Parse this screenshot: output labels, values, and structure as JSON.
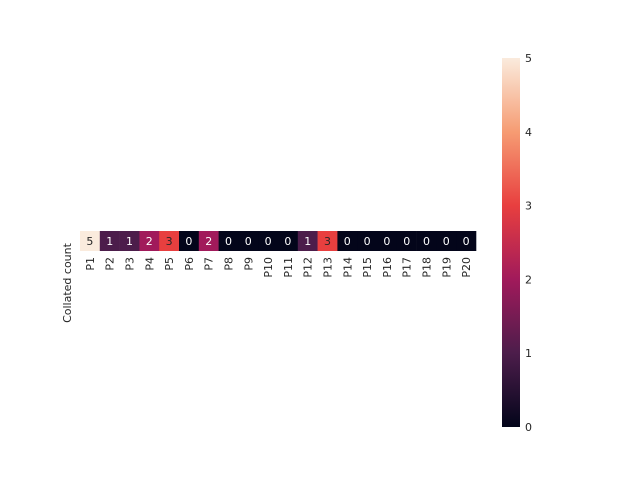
{
  "chart_data": {
    "type": "heatmap",
    "row_labels": [
      "Collated count"
    ],
    "categories": [
      "P1",
      "P2",
      "P3",
      "P4",
      "P5",
      "P6",
      "P7",
      "P8",
      "P9",
      "P10",
      "P11",
      "P12",
      "P13",
      "P14",
      "P15",
      "P16",
      "P17",
      "P18",
      "P19",
      "P20"
    ],
    "values": [
      5,
      1,
      1,
      2,
      3,
      0,
      2,
      0,
      0,
      0,
      0,
      1,
      3,
      0,
      0,
      0,
      0,
      0,
      0,
      0
    ],
    "annotations": true,
    "colormap": "rocket",
    "colorbar": {
      "min": 0,
      "max": 5,
      "ticks": [
        0,
        1,
        2,
        3,
        4,
        5
      ]
    },
    "colors": {
      "stops": [
        "#03051a",
        "#4c1d4b",
        "#a11a5b",
        "#e83f3f",
        "#f69c73",
        "#faebdd"
      ],
      "light_text": "#ffffff",
      "dark_text": "#262626"
    }
  }
}
